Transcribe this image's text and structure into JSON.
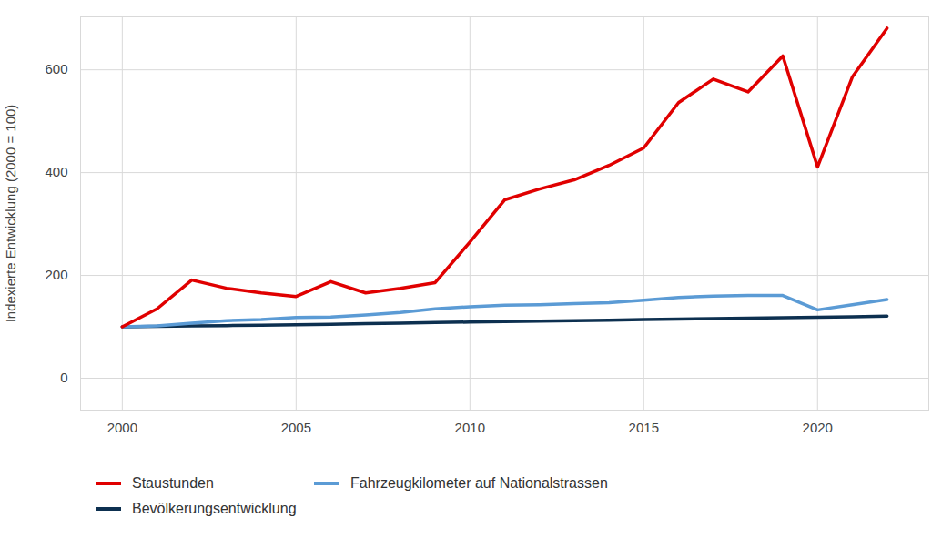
{
  "chart_data": {
    "type": "line",
    "y_label": "Indexierte Entwicklung (2000 = 100)",
    "x": [
      2000,
      2001,
      2002,
      2003,
      2004,
      2005,
      2006,
      2007,
      2008,
      2009,
      2010,
      2011,
      2012,
      2013,
      2014,
      2015,
      2016,
      2017,
      2018,
      2019,
      2020,
      2021,
      2022
    ],
    "series": [
      {
        "name": "Staustunden",
        "color": "#e00000",
        "values": [
          100,
          135,
          191,
          175,
          166,
          159,
          188,
          166,
          175,
          186,
          265,
          347,
          368,
          386,
          414,
          448,
          536,
          582,
          557,
          627,
          411,
          586,
          681
        ]
      },
      {
        "name": "Fahrzeugkilometer auf Nationalstrassen",
        "color": "#5b9bd5",
        "values": [
          100,
          102,
          107,
          112,
          114,
          118,
          119,
          123,
          128,
          135,
          139,
          142,
          143,
          145,
          147,
          152,
          157,
          160,
          161,
          161,
          133,
          143,
          153
        ]
      },
      {
        "name": "Bevölkerungsentwicklung",
        "color": "#0d3050",
        "values": [
          100,
          100.8,
          101.6,
          102.4,
          103.3,
          104.1,
          105,
          106.1,
          107.2,
          108.3,
          109.3,
          110.1,
          111,
          112,
          113,
          114,
          115,
          116,
          116.8,
          117.6,
          118.5,
          119.7,
          121
        ]
      }
    ],
    "xlim": [
      1998.8,
      2023.2
    ],
    "xticks": [
      2000,
      2005,
      2010,
      2015,
      2020
    ],
    "ylim": [
      -62,
      703
    ],
    "yticks": [
      0,
      200,
      400,
      600
    ],
    "grid": true,
    "legend": "bottom"
  }
}
